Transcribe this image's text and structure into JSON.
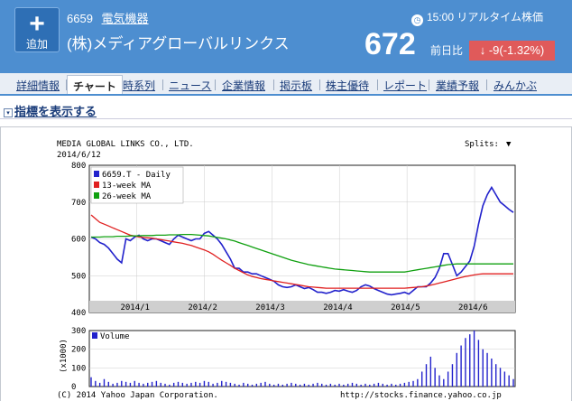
{
  "header": {
    "add_button_label": "追加",
    "code": "6659",
    "industry": "電気機器",
    "company_name": "(株)メディアグローバルリンクス",
    "realtime_label": "15:00 リアルタイム株価",
    "price": "672",
    "prev_label": "前日比",
    "change": "-9(-1.32%)"
  },
  "tabs": [
    "詳細情報",
    "チャート",
    "時系列",
    "ニュース",
    "企業情報",
    "掲示板",
    "株主優待",
    "レポート",
    "業績予報",
    "みんかぶ"
  ],
  "active_tab": "チャート",
  "indicator_link": "指標を表示する",
  "chart": {
    "header_title": "MEDIA GLOBAL LINKS CO., LTD.",
    "header_date": "2014/6/12",
    "splits_label": "Splits:",
    "legend": [
      "6659.T - Daily",
      "13-week MA",
      "26-week MA"
    ],
    "volume_legend": "Volume",
    "volume_axis_label": "(x1000)",
    "footer_left": "(C) 2014 Yahoo Japan Corporation.",
    "footer_right": "http://stocks.finance.yahoo.co.jp"
  },
  "chart_data": {
    "type": "line",
    "title": "MEDIA GLOBAL LINKS CO., LTD.",
    "ylim": [
      400,
      800
    ],
    "yticks": [
      400,
      500,
      600,
      700,
      800
    ],
    "xticks": [
      "2014/1",
      "2014/2",
      "2014/3",
      "2014/4",
      "2014/5",
      "2014/6"
    ],
    "volume_ylim": [
      0,
      300
    ],
    "volume_yticks": [
      0,
      100,
      200,
      300
    ],
    "colors": {
      "price": "#2222cc",
      "ma13": "#e02020",
      "ma26": "#10a010",
      "volume": "#2222cc"
    },
    "series": [
      {
        "name": "6659.T - Daily",
        "values": [
          605,
          600,
          590,
          585,
          575,
          560,
          545,
          535,
          600,
          595,
          605,
          610,
          600,
          595,
          600,
          600,
          595,
          590,
          585,
          600,
          610,
          605,
          600,
          595,
          600,
          600,
          615,
          620,
          610,
          600,
          585,
          565,
          545,
          520,
          520,
          510,
          510,
          505,
          505,
          500,
          495,
          490,
          485,
          475,
          470,
          468,
          470,
          475,
          470,
          465,
          468,
          462,
          455,
          455,
          452,
          455,
          460,
          458,
          462,
          458,
          455,
          460,
          470,
          475,
          472,
          465,
          460,
          455,
          450,
          448,
          450,
          452,
          455,
          450,
          460,
          470,
          470,
          470,
          480,
          495,
          520,
          560,
          560,
          530,
          500,
          510,
          525,
          540,
          580,
          640,
          690,
          720,
          740,
          720,
          700,
          690,
          680,
          672
        ]
      },
      {
        "name": "13-week MA",
        "values": [
          665,
          655,
          645,
          640,
          635,
          630,
          625,
          620,
          615,
          610,
          608,
          605,
          604,
          603,
          602,
          600,
          598,
          596,
          594,
          592,
          590,
          588,
          585,
          582,
          578,
          574,
          570,
          565,
          558,
          550,
          542,
          535,
          528,
          520,
          514,
          508,
          502,
          498,
          495,
          492,
          490,
          488,
          486,
          484,
          482,
          480,
          478,
          476,
          474,
          472,
          470,
          469,
          468,
          467,
          466,
          466,
          466,
          466,
          466,
          466,
          466,
          466,
          466,
          466,
          466,
          466,
          466,
          466,
          466,
          466,
          466,
          466,
          466,
          467,
          468,
          469,
          470,
          472,
          474,
          477,
          480,
          483,
          486,
          489,
          492,
          495,
          498,
          500,
          502,
          504,
          505,
          505,
          505,
          505,
          505,
          505,
          505,
          505
        ]
      },
      {
        "name": "26-week MA",
        "values": [
          605,
          605,
          605,
          606,
          606,
          606,
          607,
          607,
          607,
          608,
          608,
          608,
          609,
          609,
          609,
          610,
          610,
          610,
          611,
          611,
          611,
          612,
          612,
          612,
          611,
          610,
          609,
          608,
          606,
          604,
          602,
          600,
          597,
          594,
          590,
          586,
          582,
          578,
          574,
          570,
          566,
          562,
          558,
          554,
          550,
          546,
          542,
          539,
          536,
          533,
          530,
          528,
          526,
          524,
          522,
          520,
          518,
          517,
          516,
          515,
          514,
          513,
          512,
          511,
          510,
          510,
          510,
          510,
          510,
          510,
          510,
          510,
          510,
          512,
          514,
          516,
          518,
          520,
          522,
          524,
          526,
          528,
          530,
          531,
          532,
          532,
          532,
          532,
          532,
          532,
          532,
          532,
          532,
          532,
          532,
          532,
          532,
          532
        ]
      }
    ],
    "volume": [
      50,
      30,
      20,
      40,
      25,
      15,
      20,
      30,
      25,
      20,
      30,
      20,
      15,
      20,
      25,
      30,
      20,
      15,
      10,
      20,
      25,
      20,
      15,
      20,
      25,
      20,
      30,
      25,
      15,
      20,
      30,
      25,
      20,
      15,
      10,
      20,
      15,
      10,
      15,
      20,
      25,
      15,
      10,
      15,
      10,
      15,
      20,
      15,
      10,
      15,
      10,
      15,
      20,
      15,
      10,
      15,
      10,
      15,
      10,
      15,
      20,
      15,
      10,
      15,
      10,
      15,
      20,
      15,
      10,
      15,
      10,
      15,
      20,
      25,
      30,
      40,
      80,
      120,
      160,
      100,
      60,
      40,
      80,
      120,
      180,
      220,
      260,
      280,
      300,
      250,
      200,
      180,
      150,
      120,
      100,
      80,
      60,
      40
    ]
  }
}
